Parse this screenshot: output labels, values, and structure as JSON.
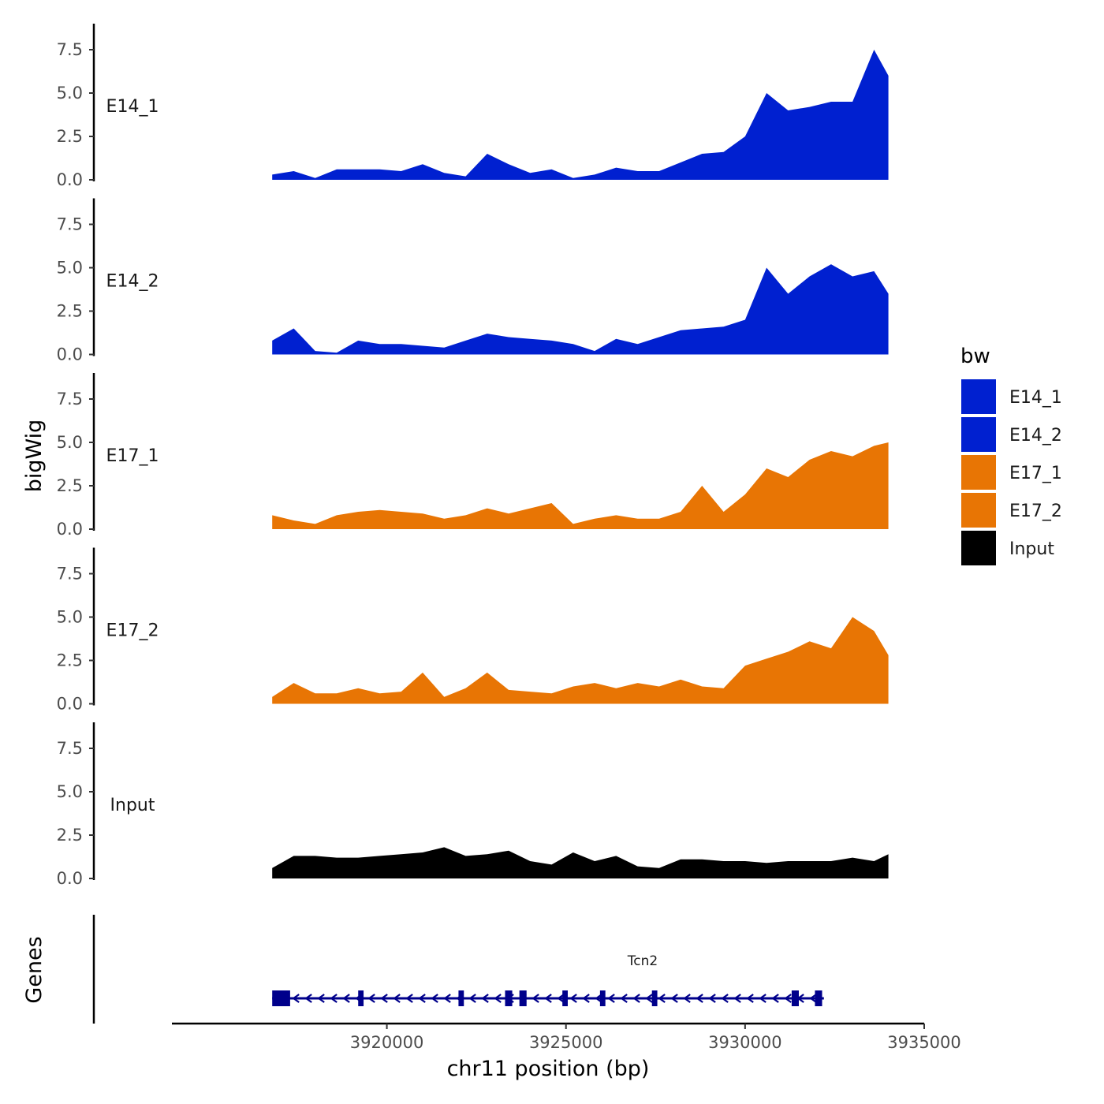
{
  "chart_data": {
    "type": "area",
    "xlabel": "chr11 position (bp)",
    "ylabel": "bigWig",
    "gene_panel_label": "Genes",
    "xlim": [
      3914000,
      3935000
    ],
    "x_ticks": [
      3920000,
      3925000,
      3930000,
      3935000
    ],
    "x_tick_labels": [
      "3920000",
      "3925000",
      "3930000",
      "3935000"
    ],
    "ylim": [
      0,
      9
    ],
    "y_ticks": [
      0,
      2.5,
      5,
      7.5
    ],
    "y_tick_labels": [
      "0.0",
      "2.5",
      "5.0",
      "7.5"
    ],
    "legend": {
      "title": "bw",
      "placement": "right",
      "entries": [
        {
          "name": "E14_1",
          "color": "#0020D0"
        },
        {
          "name": "E14_2",
          "color": "#0020D0"
        },
        {
          "name": "E17_1",
          "color": "#E87504"
        },
        {
          "name": "E17_2",
          "color": "#E87504"
        },
        {
          "name": "Input",
          "color": "#000000"
        }
      ]
    },
    "x": [
      3916800,
      3917400,
      3918000,
      3918600,
      3919200,
      3919800,
      3920400,
      3921000,
      3921600,
      3922200,
      3922800,
      3923400,
      3924000,
      3924600,
      3925200,
      3925800,
      3926400,
      3927000,
      3927600,
      3928200,
      3928800,
      3929400,
      3930000,
      3930600,
      3931200,
      3931800,
      3932400,
      3933000,
      3933600,
      3934000
    ],
    "series": [
      {
        "name": "E14_1",
        "color": "#0020D0",
        "values": [
          0.3,
          0.5,
          0.1,
          0.6,
          0.6,
          0.6,
          0.5,
          0.9,
          0.4,
          0.2,
          1.5,
          0.9,
          0.4,
          0.6,
          0.1,
          0.3,
          0.7,
          0.5,
          0.5,
          1.0,
          1.5,
          1.6,
          2.5,
          5.0,
          4.0,
          4.2,
          4.5,
          4.5,
          7.5,
          6.0
        ]
      },
      {
        "name": "E14_2",
        "color": "#0020D0",
        "values": [
          0.8,
          1.5,
          0.2,
          0.1,
          0.8,
          0.6,
          0.6,
          0.5,
          0.4,
          0.8,
          1.2,
          1.0,
          0.9,
          0.8,
          0.6,
          0.2,
          0.9,
          0.6,
          1.0,
          1.4,
          1.5,
          1.6,
          2.0,
          5.0,
          3.5,
          4.5,
          5.2,
          4.5,
          4.8,
          3.5
        ]
      },
      {
        "name": "E17_1",
        "color": "#E87504",
        "values": [
          0.8,
          0.5,
          0.3,
          0.8,
          1.0,
          1.1,
          1.0,
          0.9,
          0.6,
          0.8,
          1.2,
          0.9,
          1.2,
          1.5,
          0.3,
          0.6,
          0.8,
          0.6,
          0.6,
          1.0,
          2.5,
          1.0,
          2.0,
          3.5,
          3.0,
          4.0,
          4.5,
          4.2,
          4.8,
          5.0
        ]
      },
      {
        "name": "E17_2",
        "color": "#E87504",
        "values": [
          0.4,
          1.2,
          0.6,
          0.6,
          0.9,
          0.6,
          0.7,
          1.8,
          0.4,
          0.9,
          1.8,
          0.8,
          0.7,
          0.6,
          1.0,
          1.2,
          0.9,
          1.2,
          1.0,
          1.4,
          1.0,
          0.9,
          2.2,
          2.6,
          3.0,
          3.6,
          3.2,
          5.0,
          4.2,
          2.8
        ]
      },
      {
        "name": "Input",
        "color": "#000000",
        "values": [
          0.6,
          1.3,
          1.3,
          1.2,
          1.2,
          1.3,
          1.4,
          1.5,
          1.8,
          1.3,
          1.4,
          1.6,
          1.0,
          0.8,
          1.5,
          1.0,
          1.3,
          0.7,
          0.6,
          1.1,
          1.1,
          1.0,
          1.0,
          0.9,
          1.0,
          1.0,
          1.0,
          1.2,
          1.0,
          1.4
        ]
      }
    ],
    "genes": [
      {
        "name": "Tcn2",
        "start": 3916800,
        "end": 3932200,
        "strand": "-",
        "exons": [
          [
            3916800,
            3917300
          ],
          [
            3919200,
            3919350
          ],
          [
            3922000,
            3922150
          ],
          [
            3923300,
            3923500
          ],
          [
            3923700,
            3923900
          ],
          [
            3924900,
            3925050
          ],
          [
            3925950,
            3926100
          ],
          [
            3927400,
            3927550
          ],
          [
            3931300,
            3931500
          ],
          [
            3931950,
            3932150
          ]
        ]
      }
    ]
  }
}
